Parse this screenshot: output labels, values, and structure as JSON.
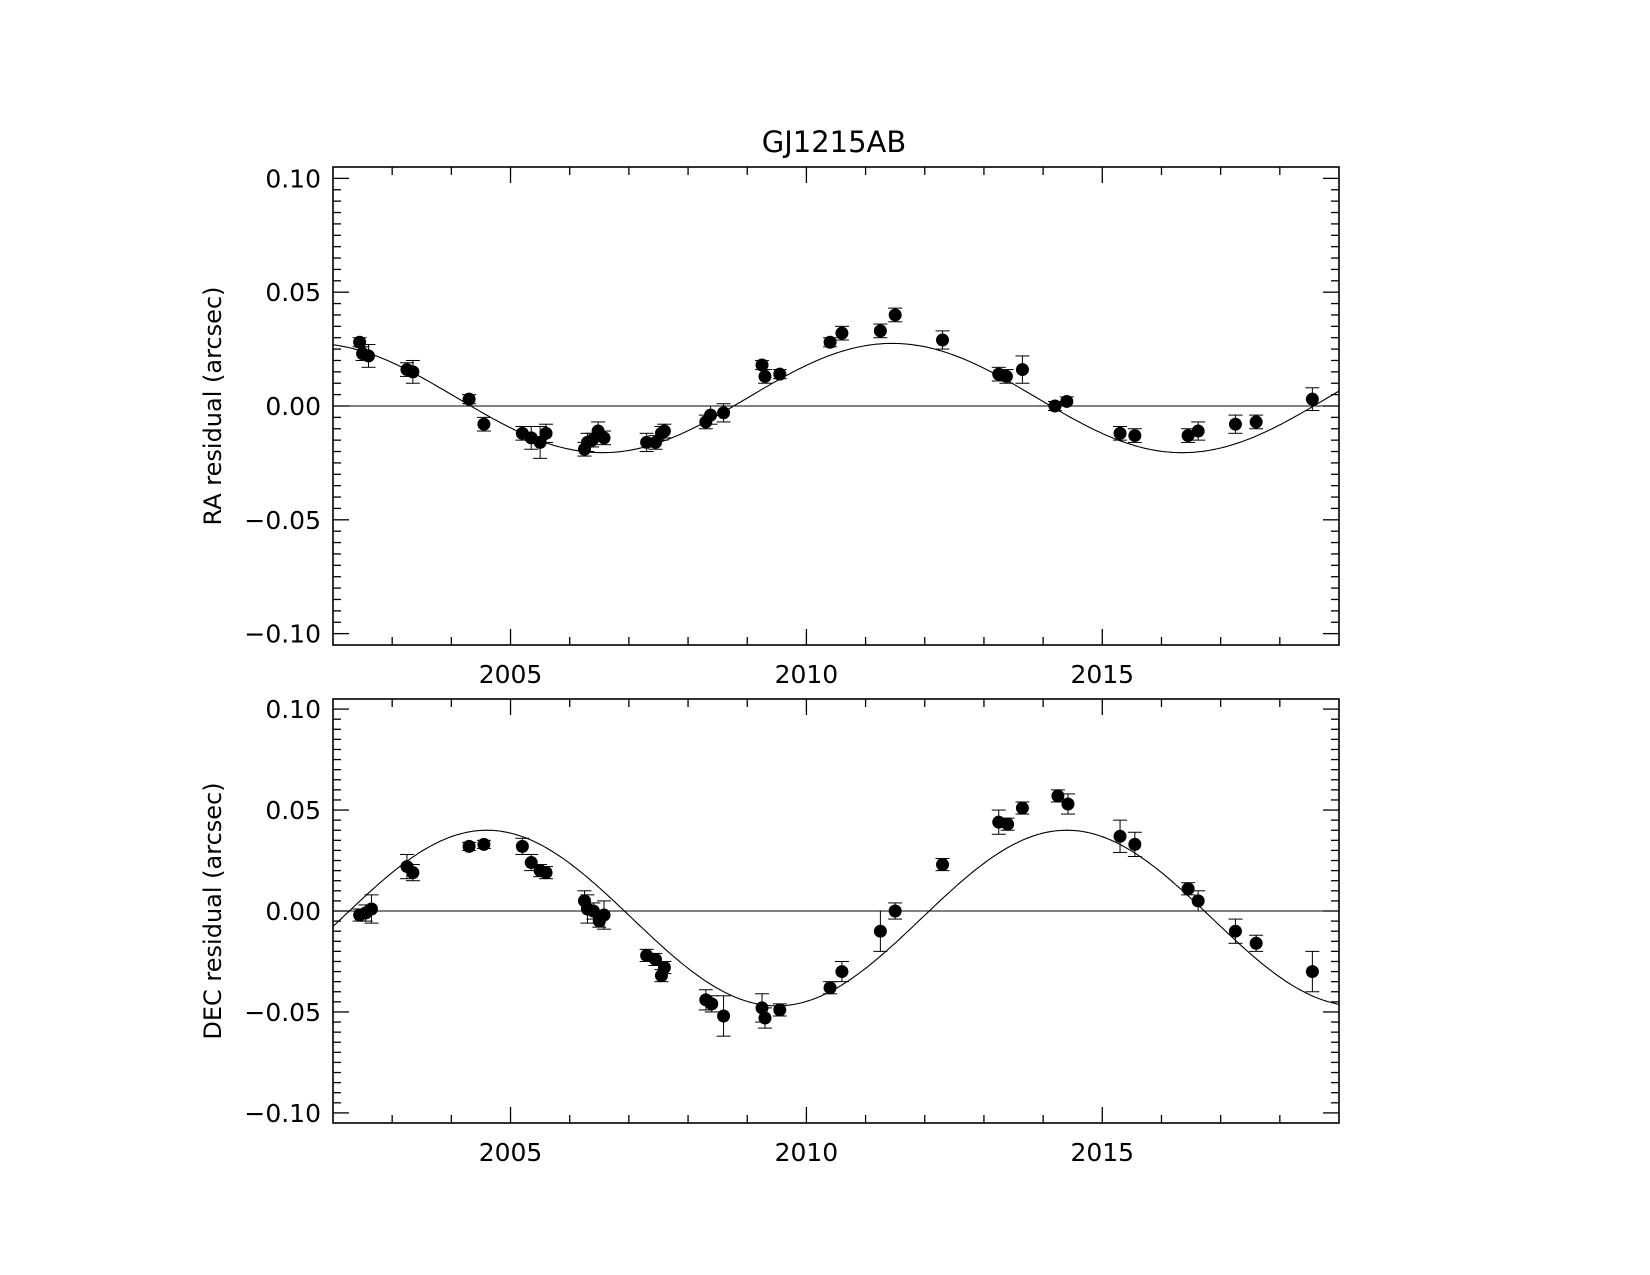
{
  "chart_data": [
    {
      "type": "scatter",
      "title": "GJ1215AB",
      "xlabel": "",
      "ylabel": "RA residual (arcsec)",
      "xlim": [
        2002,
        2019
      ],
      "ylim": [
        -0.105,
        0.105
      ],
      "xticks": [
        "2005",
        "2010",
        "2015"
      ],
      "yticks": [
        "0.10",
        "0.05",
        "0.00",
        "−0.05",
        "−0.10"
      ],
      "grid": false,
      "model_curve": {
        "amplitude": 0.024,
        "offset": 0.0035,
        "period_years": 9.8,
        "peak_year": 2011.45
      },
      "series": [
        {
          "points": [
            [
              2002.45,
              0.028,
              0.002
            ],
            [
              2002.5,
              0.023,
              0.003
            ],
            [
              2002.6,
              0.022,
              0.005
            ],
            [
              2003.25,
              0.016,
              0.003
            ],
            [
              2003.35,
              0.015,
              0.005
            ],
            [
              2004.3,
              0.003,
              0.002
            ],
            [
              2004.55,
              -0.008,
              0.003
            ],
            [
              2005.2,
              -0.012,
              0.003
            ],
            [
              2005.35,
              -0.014,
              0.005
            ],
            [
              2005.5,
              -0.016,
              0.007
            ],
            [
              2005.6,
              -0.012,
              0.004
            ],
            [
              2006.25,
              -0.019,
              0.003
            ],
            [
              2006.3,
              -0.016,
              0.004
            ],
            [
              2006.38,
              -0.015,
              0.003
            ],
            [
              2006.48,
              -0.011,
              0.004
            ],
            [
              2006.58,
              -0.014,
              0.003
            ],
            [
              2007.3,
              -0.016,
              0.004
            ],
            [
              2007.45,
              -0.016,
              0.003
            ],
            [
              2007.55,
              -0.012,
              0.003
            ],
            [
              2007.6,
              -0.011,
              0.003
            ],
            [
              2008.3,
              -0.007,
              0.003
            ],
            [
              2008.38,
              -0.004,
              0.004
            ],
            [
              2008.6,
              -0.003,
              0.004
            ],
            [
              2009.25,
              0.018,
              0.002
            ],
            [
              2009.3,
              0.013,
              0.003
            ],
            [
              2009.55,
              0.014,
              0.002
            ],
            [
              2010.4,
              0.028,
              0.002
            ],
            [
              2010.6,
              0.032,
              0.003
            ],
            [
              2011.25,
              0.033,
              0.003
            ],
            [
              2011.5,
              0.04,
              0.003
            ],
            [
              2012.3,
              0.029,
              0.004
            ],
            [
              2013.25,
              0.014,
              0.003
            ],
            [
              2013.38,
              0.013,
              0.003
            ],
            [
              2013.65,
              0.016,
              0.006
            ],
            [
              2014.2,
              0.0,
              0.002
            ],
            [
              2014.4,
              0.002,
              0.002
            ],
            [
              2015.3,
              -0.012,
              0.003
            ],
            [
              2015.55,
              -0.013,
              0.003
            ],
            [
              2016.45,
              -0.013,
              0.003
            ],
            [
              2016.62,
              -0.011,
              0.004
            ],
            [
              2017.25,
              -0.008,
              0.004
            ],
            [
              2017.6,
              -0.007,
              0.003
            ],
            [
              2018.55,
              0.003,
              0.005
            ]
          ]
        }
      ]
    },
    {
      "type": "scatter",
      "xlabel": "",
      "ylabel": "DEC residual (arcsec)",
      "xlim": [
        2002,
        2019
      ],
      "ylim": [
        -0.105,
        0.105
      ],
      "xticks": [
        "2005",
        "2010",
        "2015"
      ],
      "yticks": [
        "0.10",
        "0.05",
        "0.00",
        "−0.05",
        "−0.10"
      ],
      "grid": false,
      "model_curve": {
        "amplitude": 0.0435,
        "offset": -0.0035,
        "period_years": 9.8,
        "peak_year": 2004.6
      },
      "series": [
        {
          "points": [
            [
              2002.45,
              -0.002,
              0.003
            ],
            [
              2002.55,
              -0.001,
              0.004
            ],
            [
              2002.65,
              0.001,
              0.007
            ],
            [
              2003.25,
              0.022,
              0.006
            ],
            [
              2003.35,
              0.019,
              0.004
            ],
            [
              2004.3,
              0.032,
              0.002
            ],
            [
              2004.55,
              0.033,
              0.002
            ],
            [
              2005.2,
              0.032,
              0.004
            ],
            [
              2005.35,
              0.024,
              0.004
            ],
            [
              2005.5,
              0.02,
              0.003
            ],
            [
              2005.6,
              0.019,
              0.003
            ],
            [
              2006.25,
              0.005,
              0.005
            ],
            [
              2006.3,
              0.001,
              0.007
            ],
            [
              2006.4,
              0.0,
              0.004
            ],
            [
              2006.5,
              -0.005,
              0.003
            ],
            [
              2006.58,
              -0.002,
              0.007
            ],
            [
              2007.3,
              -0.022,
              0.003
            ],
            [
              2007.45,
              -0.024,
              0.003
            ],
            [
              2007.55,
              -0.032,
              0.003
            ],
            [
              2007.6,
              -0.028,
              0.003
            ],
            [
              2008.3,
              -0.044,
              0.005
            ],
            [
              2008.4,
              -0.046,
              0.004
            ],
            [
              2008.6,
              -0.052,
              0.01
            ],
            [
              2009.25,
              -0.048,
              0.007
            ],
            [
              2009.3,
              -0.053,
              0.005
            ],
            [
              2009.55,
              -0.049,
              0.003
            ],
            [
              2010.4,
              -0.038,
              0.003
            ],
            [
              2010.6,
              -0.03,
              0.005
            ],
            [
              2011.25,
              -0.01,
              0.01
            ],
            [
              2011.5,
              0.0,
              0.004
            ],
            [
              2012.3,
              0.023,
              0.003
            ],
            [
              2013.25,
              0.044,
              0.006
            ],
            [
              2013.4,
              0.043,
              0.003
            ],
            [
              2013.65,
              0.051,
              0.003
            ],
            [
              2014.25,
              0.057,
              0.003
            ],
            [
              2014.42,
              0.053,
              0.005
            ],
            [
              2015.3,
              0.037,
              0.008
            ],
            [
              2015.55,
              0.033,
              0.006
            ],
            [
              2016.45,
              0.011,
              0.003
            ],
            [
              2016.62,
              0.005,
              0.005
            ],
            [
              2017.25,
              -0.01,
              0.006
            ],
            [
              2017.6,
              -0.016,
              0.004
            ],
            [
              2018.55,
              -0.03,
              0.01
            ]
          ]
        }
      ]
    }
  ]
}
